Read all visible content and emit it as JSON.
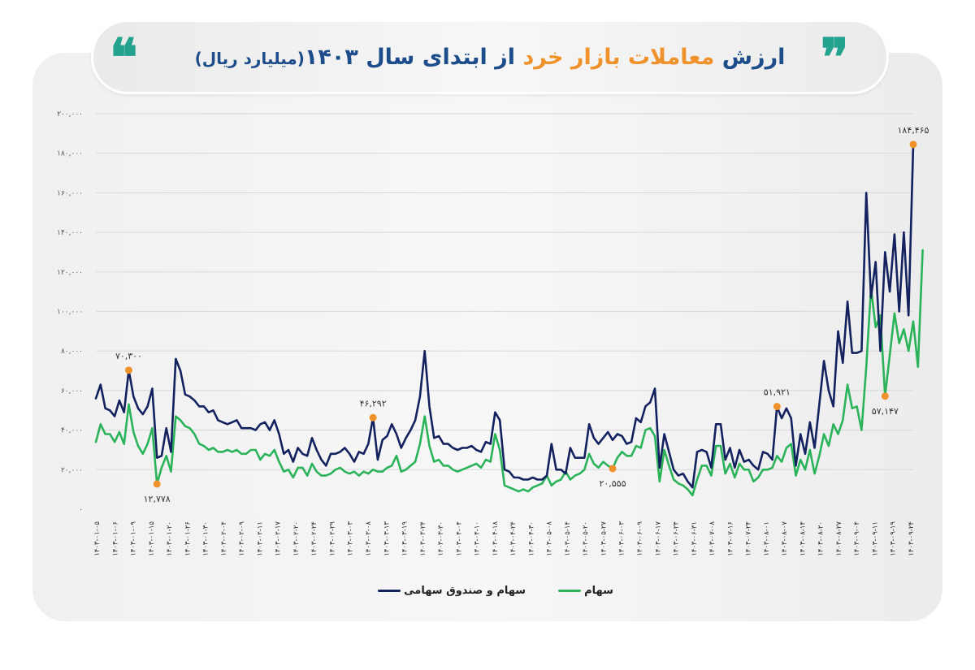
{
  "title": {
    "part1": "ارزش",
    "part2": "معاملات بازار خرد",
    "part3": "از ابتدای سال ۱۴۰۳",
    "part4": "(میلیارد ریال)",
    "quote_open": "❞",
    "quote_close": "❝"
  },
  "colors": {
    "navy": "#13215f",
    "green": "#2bb35a",
    "orange": "#f0922b",
    "title_blue": "#1c4d8a",
    "teal": "#23a28e",
    "grid": "#dcdcdc"
  },
  "legend": [
    {
      "label": "سهام",
      "color": "#2bb35a"
    },
    {
      "label": "سهام و صندوق سهامی",
      "color": "#13215f"
    }
  ],
  "chart_data": {
    "type": "line",
    "title": "ارزش معاملات بازار خرد از ابتدای سال ۱۴۰۳ (میلیارد ریال)",
    "xlabel": "",
    "ylabel": "",
    "ylim": [
      0,
      200000
    ],
    "grid": true,
    "legend_position": "bottom",
    "y_ticks": [
      "۰",
      "۲۰,۰۰۰",
      "۴۰,۰۰۰",
      "۶۰,۰۰۰",
      "۸۰,۰۰۰",
      "۱۰۰,۰۰۰",
      "۱۲۰,۰۰۰",
      "۱۴۰,۰۰۰",
      "۱۶۰,۰۰۰",
      "۱۸۰,۰۰۰",
      "۲۰۰,۰۰۰"
    ],
    "x_tick_first": "۱۴۰۳-۰۱-۰۵",
    "x_tick_last": "۱۴۰۳-۰۹-۲۴",
    "x_tick_labels": [
      "۱۴۰۳-۰۱-۰۵",
      "۱۴۰۳-۰۱-۰۶",
      "۱۴۰۳-۰۱-۰۹",
      "۱۴۰۳-۰۱-۱۵",
      "۱۴۰۳-۰۱-۲۰",
      "۱۴۰۳-۰۱-۲۶",
      "۱۴۰۳-۰۱-۳۰",
      "۱۴۰۳-۰۲-۰۴",
      "۱۴۰۳-۰۲-۰۹",
      "۱۴۰۳-۰۲-۱۱",
      "۱۴۰۳-۰۲-۱۷",
      "۱۴۰۳-۰۲-۲۰",
      "۱۴۰۳-۰۲-۲۴",
      "۱۴۰۳-۰۲-۲۹",
      "۱۴۰۳-۰۳-۰۳",
      "۱۴۰۳-۰۳-۰۸",
      "۱۴۰۳-۰۳-۱۳",
      "۱۴۰۳-۰۳-۱۹",
      "۱۴۰۳-۰۳-۲۴",
      "۱۴۰۳-۰۳-۳۰",
      "۱۴۰۳-۰۴-۰۴",
      "۱۴۰۳-۰۴-۱۰",
      "۱۴۰۳-۰۴-۱۸",
      "۱۴۰۳-۰۴-۲۴",
      "۱۴۰۳-۰۴-۳۰",
      "۱۴۰۳-۰۵-۰۸",
      "۱۴۰۳-۰۵-۱۴",
      "۱۴۰۳-۰۵-۲۰",
      "۱۴۰۳-۰۵-۲۷",
      "۱۴۰۳-۰۶-۰۳",
      "۱۴۰۳-۰۶-۰۹",
      "۱۴۰۳-۰۶-۱۷",
      "۱۴۰۳-۰۶-۲۴",
      "۱۴۰۳-۰۶-۳۱",
      "۱۴۰۳-۰۷-۰۸",
      "۱۴۰۳-۰۷-۱۶",
      "۱۴۰۳-۰۷-۲۴",
      "۱۴۰۳-۰۸-۰۱",
      "۱۴۰۳-۰۸-۰۷",
      "۱۴۰۳-۰۸-۱۴",
      "۱۴۰۳-۰۸-۲۰",
      "۱۴۰۳-۰۸-۲۷",
      "۱۴۰۳-۰۹-۰۴",
      "۱۴۰۳-۰۹-۱۱",
      "۱۴۰۳-۰۹-۱۹",
      "۱۴۰۳-۰۹-۲۴"
    ],
    "n_points": 172,
    "series": [
      {
        "name": "سهام و صندوق سهامی",
        "color": "#13215f",
        "values": [
          56000,
          63000,
          51000,
          50000,
          47000,
          55000,
          49000,
          70300,
          57000,
          51000,
          48000,
          52000,
          61000,
          26000,
          27000,
          41000,
          29000,
          76000,
          70000,
          58000,
          57000,
          55000,
          52000,
          52000,
          49000,
          50000,
          45000,
          44000,
          43000,
          44000,
          45000,
          41000,
          41000,
          41000,
          40000,
          43000,
          44000,
          40000,
          45000,
          38000,
          28000,
          30000,
          24000,
          31000,
          28000,
          27000,
          36000,
          30000,
          25000,
          22000,
          28000,
          28000,
          29000,
          31000,
          28000,
          24000,
          29000,
          28000,
          33000,
          46292,
          25000,
          35000,
          37000,
          43000,
          38000,
          31000,
          36000,
          40000,
          45000,
          57000,
          80000,
          52000,
          36000,
          37000,
          33000,
          33000,
          31000,
          30000,
          31000,
          31000,
          32000,
          30000,
          29000,
          34000,
          33000,
          49000,
          45000,
          20000,
          19000,
          16000,
          16000,
          15000,
          15000,
          16000,
          15000,
          15000,
          17000,
          33000,
          20000,
          20000,
          18000,
          31000,
          26000,
          26000,
          26000,
          43000,
          36000,
          33000,
          36000,
          39000,
          35000,
          38000,
          37000,
          33000,
          34000,
          46000,
          44000,
          52000,
          54000,
          61000,
          21000,
          38000,
          29000,
          20000,
          17000,
          18000,
          14000,
          11000,
          29000,
          30000,
          29000,
          21000,
          43000,
          43000,
          25000,
          31000,
          21000,
          30000,
          24000,
          25000,
          22000,
          20000,
          29000,
          28000,
          25000,
          51921,
          46000,
          51000,
          46000,
          22000,
          38000,
          28000,
          44000,
          31000,
          53000,
          75000,
          60000,
          52000,
          90000,
          74000,
          105000,
          79000,
          79000,
          80000,
          160000,
          107000,
          125000,
          80000,
          130000,
          110000,
          139000,
          100000,
          140000,
          98000,
          184465
        ],
        "annotations": [
          {
            "label": "۷۰,۳۰۰",
            "value": 70300
          },
          {
            "label": "۴۶,۲۹۲",
            "value": 46292
          },
          {
            "label": "۵۱,۹۲۱",
            "value": 51921
          },
          {
            "label": "۱۸۴,۴۶۵",
            "value": 184465
          }
        ]
      },
      {
        "name": "سهام",
        "color": "#2bb35a",
        "values": [
          34000,
          43000,
          38000,
          38000,
          34000,
          39000,
          33000,
          53000,
          39000,
          32000,
          28000,
          33000,
          41000,
          12778,
          21000,
          27000,
          19000,
          47000,
          45000,
          42000,
          41000,
          38000,
          33000,
          32000,
          30000,
          31000,
          29000,
          29000,
          30000,
          29000,
          30000,
          28000,
          28000,
          30000,
          30000,
          25000,
          28000,
          27000,
          30000,
          24000,
          19000,
          20000,
          16000,
          21000,
          21000,
          17000,
          23000,
          19000,
          17000,
          17000,
          18000,
          20000,
          21000,
          19000,
          18000,
          19000,
          17000,
          19000,
          18000,
          20000,
          19000,
          19000,
          21000,
          22000,
          27000,
          19000,
          20000,
          22000,
          24000,
          33000,
          47000,
          32000,
          24000,
          25000,
          22000,
          22000,
          20000,
          19000,
          20000,
          21000,
          22000,
          23000,
          21000,
          25000,
          24000,
          38000,
          30000,
          12000,
          11000,
          10000,
          9000,
          10000,
          9000,
          11000,
          12000,
          13000,
          17000,
          12000,
          14000,
          15000,
          19000,
          15000,
          17000,
          18000,
          20000,
          28000,
          23000,
          21000,
          24000,
          22000,
          20555,
          26000,
          29000,
          27000,
          27000,
          32000,
          31000,
          40000,
          41000,
          37000,
          14000,
          30000,
          22000,
          15000,
          13000,
          12000,
          10000,
          7000,
          15000,
          22000,
          22000,
          17000,
          32000,
          32000,
          18000,
          23000,
          16000,
          23000,
          20000,
          20000,
          14000,
          16000,
          20000,
          20000,
          21000,
          27000,
          24000,
          31000,
          33000,
          17000,
          25000,
          20000,
          30000,
          18000,
          27000,
          38000,
          32000,
          43000,
          38000,
          45000,
          63000,
          51000,
          52000,
          40000,
          72000,
          112000,
          92000,
          98000,
          57147,
          78000,
          99000,
          84000,
          91000,
          80000,
          95000,
          72000,
          131000
        ],
        "annotations": [
          {
            "label": "۱۲,۷۷۸",
            "value": 12778
          },
          {
            "label": "۲۰,۵۵۵",
            "value": 20555
          },
          {
            "label": "۵۷,۱۴۷",
            "value": 57147
          }
        ]
      }
    ]
  }
}
